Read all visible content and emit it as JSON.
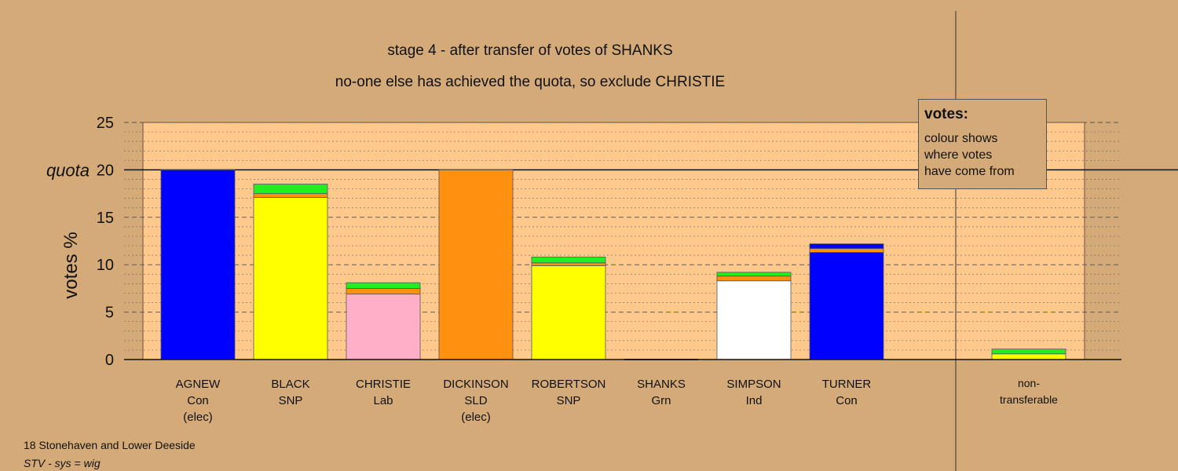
{
  "titles": {
    "line1": "stage 4 - after transfer of votes of SHANKS",
    "line2": "no-one else has achieved the quota, so exclude CHRISTIE"
  },
  "legend": {
    "title": "votes:",
    "lines": [
      "colour shows",
      "where votes",
      "have come from"
    ]
  },
  "footer": {
    "line1": "18 Stonehaven and Lower Deeside",
    "line2": "STV - sys = wig"
  },
  "colors": {
    "background": "#d4aa78",
    "plot_fill": "#ffc88c",
    "Con": "#0000ff",
    "SNP": "#ffff00",
    "Lab": "#ffb0c8",
    "SLD": "#ff9010",
    "Grn": "#20f020",
    "Ind": "#ffffff",
    "nontransferable": "#ffff00"
  },
  "chart_data": {
    "type": "bar",
    "stacked": true,
    "ylabel": "votes %",
    "ylim": [
      0,
      25
    ],
    "yticks": [
      0,
      5,
      10,
      15,
      20,
      25
    ],
    "quota": 20,
    "quota_label": "quota",
    "grid": "dotted every 1, dashed every 5",
    "legend_placement": "top-right",
    "categories": [
      {
        "name": "AGNEW",
        "party": "Con",
        "note": "(elec)",
        "segments": [
          {
            "source": "Con",
            "value": 20.0
          }
        ]
      },
      {
        "name": "BLACK",
        "party": "SNP",
        "note": "",
        "segments": [
          {
            "source": "SNP",
            "value": 17.1
          },
          {
            "source": "SLD",
            "value": 0.4
          },
          {
            "source": "Grn",
            "value": 1.0
          }
        ]
      },
      {
        "name": "CHRISTIE",
        "party": "Lab",
        "note": "",
        "segments": [
          {
            "source": "Lab",
            "value": 6.9
          },
          {
            "source": "SLD",
            "value": 0.6
          },
          {
            "source": "Grn",
            "value": 0.6
          }
        ]
      },
      {
        "name": "DICKINSON",
        "party": "SLD",
        "note": "(elec)",
        "segments": [
          {
            "source": "SLD",
            "value": 20.0
          }
        ]
      },
      {
        "name": "ROBERTSON",
        "party": "SNP",
        "note": "",
        "segments": [
          {
            "source": "SNP",
            "value": 9.9
          },
          {
            "source": "SLD",
            "value": 0.3
          },
          {
            "source": "Grn",
            "value": 0.6
          }
        ]
      },
      {
        "name": "SHANKS",
        "party": "Grn",
        "note": "",
        "segments": [
          {
            "source": "Grn",
            "value": 0.0
          }
        ]
      },
      {
        "name": "SIMPSON",
        "party": "Ind",
        "note": "",
        "segments": [
          {
            "source": "Ind",
            "value": 8.3
          },
          {
            "source": "SLD",
            "value": 0.5
          },
          {
            "source": "Grn",
            "value": 0.4
          }
        ]
      },
      {
        "name": "TURNER",
        "party": "Con",
        "note": "",
        "segments": [
          {
            "source": "Con",
            "value": 11.3
          },
          {
            "source": "SLD",
            "value": 0.4
          },
          {
            "source": "Con",
            "value": 0.5
          }
        ]
      }
    ],
    "nontransferable": {
      "label_lines": [
        "non-",
        "transferable"
      ],
      "segments": [
        {
          "source": "nontransferable",
          "value": 0.6
        },
        {
          "source": "Grn",
          "value": 0.5
        }
      ]
    }
  }
}
